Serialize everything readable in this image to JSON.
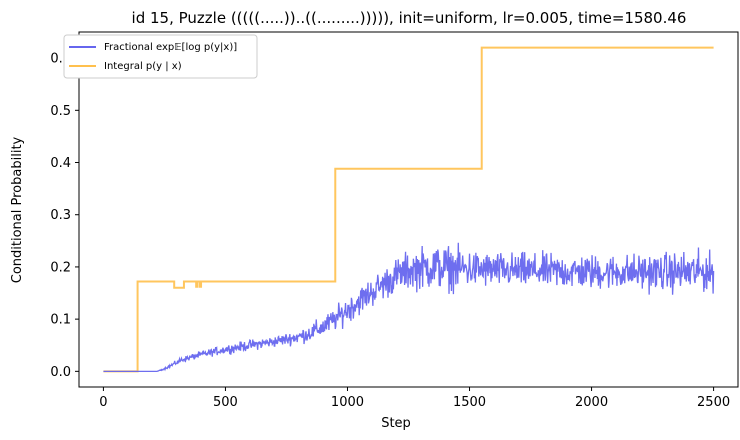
{
  "chart_data": {
    "type": "line",
    "title": "id 15, Puzzle (((((.....))..((.........))))), init=uniform, lr=0.005, time=1580.46",
    "xlabel": "Step",
    "ylabel": "Conditional Probability",
    "xlim": [
      -100,
      2600
    ],
    "ylim": [
      -0.03,
      0.65
    ],
    "xticks": [
      0,
      500,
      1000,
      1500,
      2000,
      2500
    ],
    "yticks": [
      0.0,
      0.1,
      0.2,
      0.3,
      0.4,
      0.5,
      0.6
    ],
    "xtick_labels": [
      "0",
      "500",
      "1000",
      "1500",
      "2000",
      "2500"
    ],
    "ytick_labels": [
      "0.0",
      "0.1",
      "0.2",
      "0.3",
      "0.4",
      "0.5",
      "0.6"
    ],
    "grid": false,
    "legend_placement": "top-left",
    "series": [
      {
        "name": "Fractional exp𝔼[log p(y|x)]",
        "color": "#6666ee",
        "style": "noisy-line",
        "x": [
          0,
          220,
          250,
          280,
          320,
          400,
          500,
          600,
          700,
          800,
          850,
          900,
          950,
          1000,
          1050,
          1100,
          1150,
          1200,
          1250,
          1300,
          1350,
          1400,
          1500,
          1600,
          1700,
          1800,
          1900,
          2000,
          2100,
          2200,
          2300,
          2400,
          2500
        ],
        "y": [
          0.0,
          0.0,
          0.005,
          0.012,
          0.022,
          0.032,
          0.042,
          0.05,
          0.057,
          0.066,
          0.074,
          0.085,
          0.1,
          0.118,
          0.135,
          0.152,
          0.168,
          0.183,
          0.193,
          0.198,
          0.2,
          0.198,
          0.196,
          0.194,
          0.193,
          0.192,
          0.191,
          0.19,
          0.19,
          0.19,
          0.19,
          0.19,
          0.19
        ],
        "noise": [
          0.0,
          0.0,
          0.001,
          0.002,
          0.003,
          0.004,
          0.005,
          0.006,
          0.006,
          0.008,
          0.01,
          0.012,
          0.013,
          0.015,
          0.016,
          0.017,
          0.018,
          0.02,
          0.022,
          0.024,
          0.026,
          0.026,
          0.022,
          0.02,
          0.02,
          0.02,
          0.02,
          0.02,
          0.02,
          0.021,
          0.022,
          0.024,
          0.022
        ]
      },
      {
        "name": "Integral p(y | x)",
        "color": "#ffc04d",
        "style": "step",
        "x": [
          0,
          140,
          140,
          290,
          290,
          330,
          330,
          380,
          380,
          385,
          385,
          395,
          395,
          400,
          400,
          405,
          405,
          950,
          950,
          1550,
          1550,
          2500
        ],
        "y": [
          0.0,
          0.0,
          0.172,
          0.172,
          0.16,
          0.16,
          0.172,
          0.172,
          0.162,
          0.162,
          0.172,
          0.172,
          0.162,
          0.162,
          0.172,
          0.172,
          0.172,
          0.172,
          0.388,
          0.388,
          0.62,
          0.62
        ]
      }
    ]
  }
}
